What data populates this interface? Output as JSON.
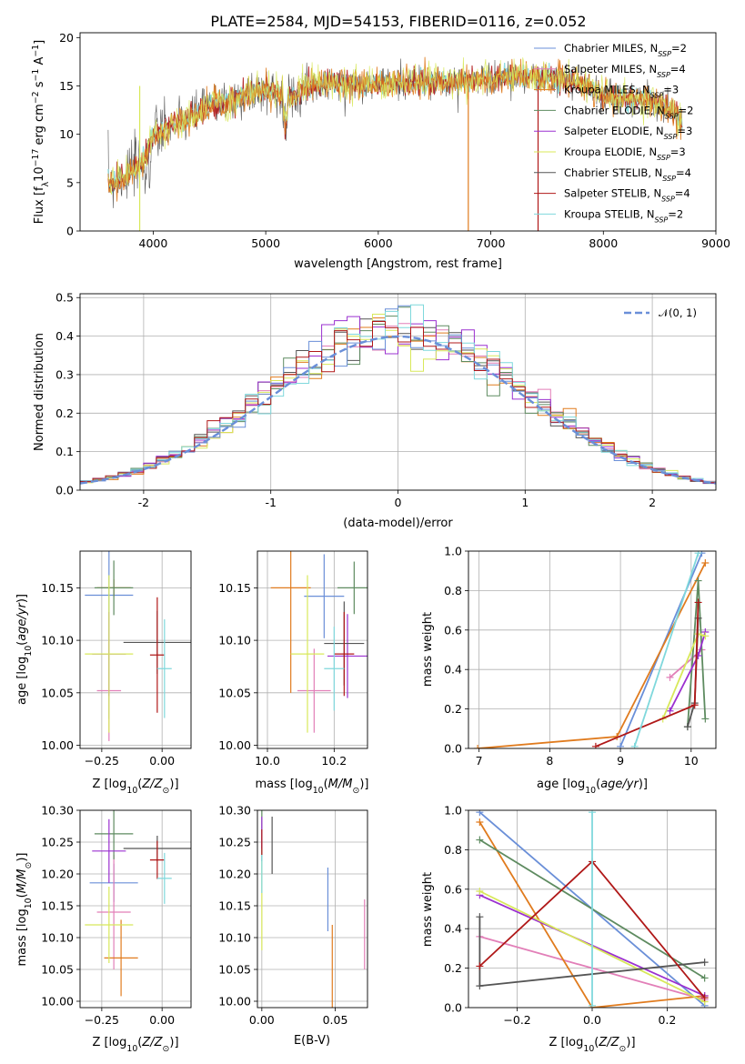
{
  "figure": {
    "title": "PLATE=2584, MJD=54153, FIBERID=0116, z=0.052"
  },
  "models": [
    {
      "name": "Chabrier MILES, N$_{SSP}$=2",
      "label_text": "Chabrier MILES, N",
      "label_sub": "SSP",
      "label_tail": "=2",
      "color": "#6a8fd8"
    },
    {
      "name": "Salpeter MILES, N$_{SSP}$=4",
      "label_text": "Salpeter MILES, N",
      "label_sub": "SSP",
      "label_tail": "=4",
      "color": "#e27fb8"
    },
    {
      "name": "Kroupa MILES, N$_{SSP}$=3",
      "label_text": "Kroupa MILES, N",
      "label_sub": "SSP",
      "label_tail": "=3",
      "color": "#e07b1e"
    },
    {
      "name": "Chabrier ELODIE, N$_{SSP}$=2",
      "label_text": "Chabrier ELODIE, N",
      "label_sub": "SSP",
      "label_tail": "=2",
      "color": "#5e8b60"
    },
    {
      "name": "Salpeter ELODIE, N$_{SSP}$=3",
      "label_text": "Salpeter ELODIE, N",
      "label_sub": "SSP",
      "label_tail": "=3",
      "color": "#9b30d0"
    },
    {
      "name": "Kroupa ELODIE, N$_{SSP}$=3",
      "label_text": "Kroupa ELODIE, N",
      "label_sub": "SSP",
      "label_tail": "=3",
      "color": "#d8e85a"
    },
    {
      "name": "Chabrier STELIB, N$_{SSP}$=4",
      "label_text": "Chabrier STELIB, N",
      "label_sub": "SSP",
      "label_tail": "=4",
      "color": "#555555"
    },
    {
      "name": "Salpeter STELIB, N$_{SSP}$=4",
      "label_text": "Salpeter STELIB, N",
      "label_sub": "SSP",
      "label_tail": "=4",
      "color": "#b01818"
    },
    {
      "name": "Kroupa STELIB, N$_{SSP}$=2",
      "label_text": "Kroupa STELIB, N",
      "label_sub": "SSP",
      "label_tail": "=2",
      "color": "#7fd8dc"
    }
  ],
  "chart_data": [
    {
      "id": "spectrum",
      "type": "line",
      "xlabel": "wavelength [Angstrom, rest frame]",
      "ylabel_text": "Flux [f",
      "ylim": [
        0,
        20.5
      ],
      "xlim": [
        3350,
        9000
      ],
      "xticks": [
        4000,
        5000,
        6000,
        7000,
        8000,
        9000
      ],
      "yticks": [
        0,
        5,
        10,
        15,
        20
      ],
      "legend_position": "right",
      "continuum": {
        "x": [
          3600,
          3700,
          3800,
          3900,
          4000,
          4100,
          4200,
          4300,
          4400,
          4500,
          4600,
          4700,
          4800,
          4900,
          5000,
          5100,
          5200,
          5300,
          5400,
          5500,
          5600,
          5800,
          6000,
          6200,
          6400,
          6600,
          6800,
          7000,
          7200,
          7400,
          7600,
          7800,
          8000,
          8200,
          8400,
          8600,
          8700
        ],
        "y": [
          5.0,
          5.5,
          6.2,
          7.0,
          9.8,
          10.3,
          11.2,
          11.5,
          12.2,
          13.0,
          13.3,
          13.4,
          14.0,
          14.5,
          14.6,
          14.4,
          13.5,
          14.5,
          15.2,
          15.2,
          15.3,
          15.2,
          15.2,
          15.3,
          15.4,
          15.4,
          15.5,
          15.8,
          16.0,
          15.8,
          15.7,
          15.2,
          14.0,
          13.8,
          13.5,
          12.5,
          11.5
        ]
      }
    },
    {
      "id": "residuals",
      "type": "bar",
      "xlabel": "(data-model)/error",
      "ylabel": "Normed distribution",
      "xlim": [
        -2.5,
        2.5
      ],
      "ylim": [
        0,
        0.51
      ],
      "xticks": [
        -2,
        -1,
        0,
        1,
        2
      ],
      "yticks": [
        0.0,
        0.1,
        0.2,
        0.3,
        0.4,
        0.5
      ],
      "grid": true,
      "legend_position": "top-right",
      "reference_curve": {
        "name": "$\\mathcal{N}(0,1)$",
        "label": "𝒩(0, 1)",
        "color": "#6a8fd8"
      },
      "bin_width": 0.1
    },
    {
      "id": "age_vs_Z",
      "type": "scatter",
      "xlabel_text": "Z [log",
      "ylabel_text": "age  [log",
      "xlim": [
        -0.34,
        0.12
      ],
      "ylim": [
        9.997,
        10.185
      ],
      "xticks": [
        -0.25,
        0.0
      ],
      "yticks": [
        10.0,
        10.05,
        10.1,
        10.15
      ],
      "points": [
        {
          "model": 0,
          "x": -0.22,
          "y": 10.143,
          "xerr": 0.1,
          "yerr": 0.118
        },
        {
          "model": 1,
          "x": -0.22,
          "y": 10.052,
          "xerr": 0.05,
          "yerr": 0.048
        },
        {
          "model": 2,
          "x": -0.2,
          "y": 10.15,
          "xerr": 0.07,
          "yerr": 0.008
        },
        {
          "model": 3,
          "x": -0.2,
          "y": 10.15,
          "xerr": 0.08,
          "yerr": 0.026
        },
        {
          "model": 4,
          "x": -0.22,
          "y": 10.087,
          "xerr": 0.07,
          "yerr": 0.04
        },
        {
          "model": 5,
          "x": -0.22,
          "y": 10.087,
          "xerr": 0.1,
          "yerr": 0.075
        },
        {
          "model": 6,
          "x": -0.02,
          "y": 10.098,
          "xerr": 0.14,
          "yerr": 0.03
        },
        {
          "model": 7,
          "x": -0.02,
          "y": 10.086,
          "xerr": 0.03,
          "yerr": 0.055
        },
        {
          "model": 8,
          "x": 0.01,
          "y": 10.073,
          "xerr": 0.03,
          "yerr": 0.047
        }
      ]
    },
    {
      "id": "age_vs_mass",
      "type": "scatter",
      "xlabel_text": "mass [log",
      "xlim": [
        9.97,
        10.3
      ],
      "ylim": [
        9.997,
        10.185
      ],
      "xticks": [
        10.0,
        10.2
      ],
      "yticks": [
        10.0,
        10.05,
        10.1,
        10.15
      ],
      "points": [
        {
          "model": 0,
          "x": 10.17,
          "y": 10.142,
          "xerr": 0.06,
          "yerr": 0.04
        },
        {
          "model": 1,
          "x": 10.14,
          "y": 10.052,
          "xerr": 0.05,
          "yerr": 0.04
        },
        {
          "model": 2,
          "x": 10.07,
          "y": 10.15,
          "xerr": 0.06,
          "yerr": 0.1
        },
        {
          "model": 3,
          "x": 10.26,
          "y": 10.15,
          "xerr": 0.05,
          "yerr": 0.025
        },
        {
          "model": 4,
          "x": 10.24,
          "y": 10.085,
          "xerr": 0.06,
          "yerr": 0.04
        },
        {
          "model": 5,
          "x": 10.12,
          "y": 10.087,
          "xerr": 0.05,
          "yerr": 0.075
        },
        {
          "model": 6,
          "x": 10.23,
          "y": 10.097,
          "xerr": 0.06,
          "yerr": 0.04
        },
        {
          "model": 7,
          "x": 10.23,
          "y": 10.087,
          "xerr": 0.03,
          "yerr": 0.04
        },
        {
          "model": 8,
          "x": 10.2,
          "y": 10.073,
          "xerr": 0.03,
          "yerr": 0.04
        }
      ]
    },
    {
      "id": "massweight_vs_age",
      "type": "line",
      "xlabel_text": "age  [log",
      "ylabel": "mass weight",
      "xlim": [
        6.85,
        10.35
      ],
      "ylim": [
        0,
        1
      ],
      "xticks": [
        7,
        8,
        9,
        10
      ],
      "yticks": [
        0.0,
        0.2,
        0.4,
        0.6,
        0.8,
        1.0
      ],
      "grid": true,
      "series": [
        {
          "model": 0,
          "x": [
            9.0,
            10.15
          ],
          "y": [
            0.01,
            0.99
          ]
        },
        {
          "model": 1,
          "x": [
            9.7,
            10.15
          ],
          "y": [
            0.36,
            0.5
          ]
        },
        {
          "model": 2,
          "x": [
            6.98,
            8.95,
            10.2
          ],
          "y": [
            0.0,
            0.06,
            0.94
          ]
        },
        {
          "model": 3,
          "x": [
            9.95,
            10.1,
            10.2
          ],
          "y": [
            0.11,
            0.85,
            0.15
          ]
        },
        {
          "model": 4,
          "x": [
            9.7,
            10.1,
            10.2
          ],
          "y": [
            0.19,
            0.47,
            0.59
          ]
        },
        {
          "model": 5,
          "x": [
            9.6,
            10.1,
            10.2
          ],
          "y": [
            0.15,
            0.58,
            0.57
          ]
        },
        {
          "model": 6,
          "x": [
            9.95,
            10.05,
            10.1
          ],
          "y": [
            0.11,
            0.23,
            0.66
          ]
        },
        {
          "model": 7,
          "x": [
            8.65,
            10.05,
            10.1
          ],
          "y": [
            0.01,
            0.22,
            0.74
          ]
        },
        {
          "model": 8,
          "x": [
            9.2,
            10.1
          ],
          "y": [
            0.01,
            0.99
          ]
        }
      ]
    },
    {
      "id": "mass_vs_Z",
      "type": "scatter",
      "xlabel_text": "Z [log",
      "ylabel_text": "mass [log",
      "xlim": [
        -0.34,
        0.12
      ],
      "ylim": [
        9.99,
        10.3
      ],
      "xticks": [
        -0.25,
        0.0
      ],
      "yticks": [
        10.0,
        10.05,
        10.1,
        10.15,
        10.2,
        10.25,
        10.3
      ],
      "points": [
        {
          "model": 0,
          "x": -0.2,
          "y": 10.186,
          "xerr": 0.1,
          "yerr": 0.03
        },
        {
          "model": 1,
          "x": -0.2,
          "y": 10.14,
          "xerr": 0.07,
          "yerr": 0.09
        },
        {
          "model": 2,
          "x": -0.17,
          "y": 10.068,
          "xerr": 0.07,
          "yerr": 0.06
        },
        {
          "model": 3,
          "x": -0.2,
          "y": 10.263,
          "xerr": 0.08,
          "yerr": 0.04
        },
        {
          "model": 4,
          "x": -0.22,
          "y": 10.236,
          "xerr": 0.07,
          "yerr": 0.05
        },
        {
          "model": 5,
          "x": -0.22,
          "y": 10.12,
          "xerr": 0.1,
          "yerr": 0.06
        },
        {
          "model": 6,
          "x": -0.02,
          "y": 10.24,
          "xerr": 0.14,
          "yerr": 0.02
        },
        {
          "model": 7,
          "x": -0.02,
          "y": 10.222,
          "xerr": 0.03,
          "yerr": 0.03
        },
        {
          "model": 8,
          "x": 0.01,
          "y": 10.193,
          "xerr": 0.03,
          "yerr": 0.04
        }
      ]
    },
    {
      "id": "mass_vs_ebv",
      "type": "scatter",
      "xlabel": "E(B-V)",
      "xlim": [
        -0.003,
        0.072
      ],
      "ylim": [
        9.99,
        10.3
      ],
      "xticks": [
        0.0,
        0.05
      ],
      "yticks": [
        10.0,
        10.05,
        10.1,
        10.15,
        10.2,
        10.25,
        10.3
      ],
      "points": [
        {
          "model": 0,
          "x": 0.045,
          "y": 10.16,
          "yerr": 0.05
        },
        {
          "model": 1,
          "x": 0.07,
          "y": 10.105,
          "yerr": 0.055
        },
        {
          "model": 2,
          "x": 0.048,
          "y": 10.055,
          "yerr": 0.065
        },
        {
          "model": 3,
          "x": 0.0,
          "y": 10.26,
          "yerr": 0.04
        },
        {
          "model": 4,
          "x": 0.0,
          "y": 10.265,
          "yerr": 0.025
        },
        {
          "model": 5,
          "x": 0.0,
          "y": 10.15,
          "yerr": 0.07
        },
        {
          "model": 6,
          "x": 0.007,
          "y": 10.245,
          "yerr": 0.045
        },
        {
          "model": 7,
          "x": 0.0,
          "y": 10.25,
          "yerr": 0.02
        },
        {
          "model": 8,
          "x": 0.0,
          "y": 10.2,
          "yerr": 0.03
        }
      ]
    },
    {
      "id": "massweight_vs_Z",
      "type": "line",
      "xlabel_text": "Z [log",
      "ylabel": "mass weight",
      "xlim": [
        -0.33,
        0.33
      ],
      "ylim": [
        0,
        1
      ],
      "xticks": [
        -0.2,
        0.0,
        0.2
      ],
      "yticks": [
        0.0,
        0.2,
        0.4,
        0.6,
        0.8,
        1.0
      ],
      "grid": true,
      "series": [
        {
          "model": 0,
          "x": [
            -0.3,
            0.3
          ],
          "y": [
            0.99,
            0.01
          ]
        },
        {
          "model": 1,
          "x": [
            -0.3,
            0.3
          ],
          "y": [
            0.36,
            0.04
          ]
        },
        {
          "model": 2,
          "x": [
            -0.3,
            0.0,
            0.3
          ],
          "y": [
            0.94,
            0.0,
            0.06
          ]
        },
        {
          "model": 3,
          "x": [
            -0.3,
            0.3
          ],
          "y": [
            0.85,
            0.15
          ]
        },
        {
          "model": 4,
          "x": [
            -0.3,
            0.3
          ],
          "y": [
            0.57,
            0.06
          ]
        },
        {
          "model": 5,
          "x": [
            -0.3,
            0.3
          ],
          "y": [
            0.59,
            0.03
          ]
        },
        {
          "model": 6,
          "x": [
            -0.3,
            -0.3,
            0.3
          ],
          "y": [
            0.46,
            0.11,
            0.23
          ]
        },
        {
          "model": 7,
          "x": [
            -0.3,
            0.0,
            0.3
          ],
          "y": [
            0.21,
            0.74,
            0.05
          ]
        },
        {
          "model": 8,
          "x": [
            0.0,
            0.0
          ],
          "y": [
            0.01,
            0.99
          ]
        }
      ]
    }
  ]
}
